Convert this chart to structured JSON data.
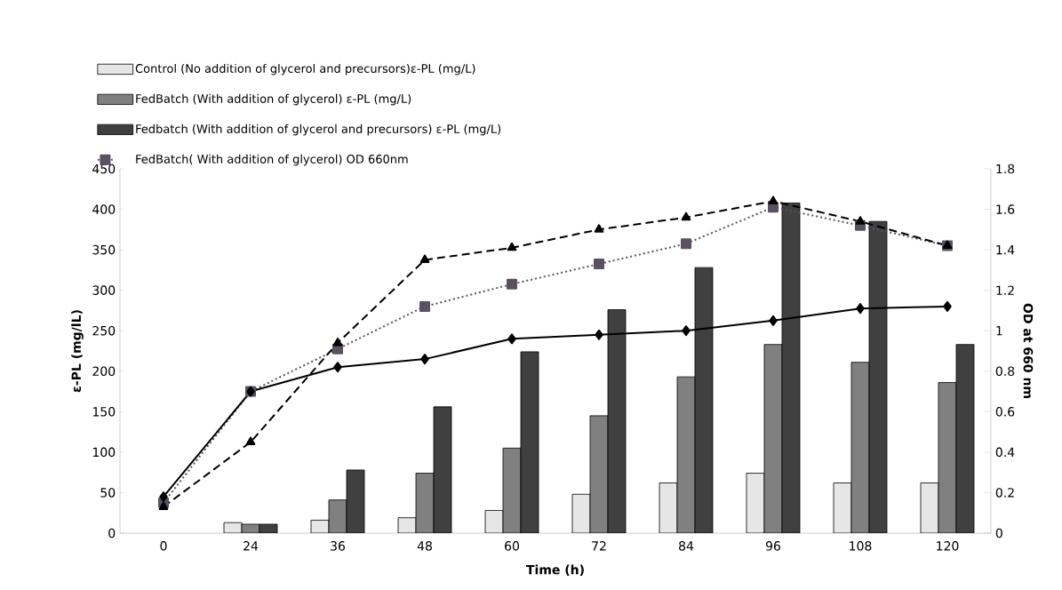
{
  "chart_data": {
    "type": "bar",
    "xlabel": "Time  (h)",
    "ylabel": "ε-PL (mg/lL)",
    "y2label": "OD at 660 nm",
    "categories": [
      "0",
      "24",
      "36",
      "48",
      "60",
      "72",
      "84",
      "96",
      "108",
      "120"
    ],
    "series": [
      {
        "name": "Control  (No addition of glycerol and precursors)ε-PL (mg/L)",
        "color": "#e6e6e6",
        "values": [
          null,
          13,
          16,
          19,
          28,
          48,
          62,
          74,
          62,
          62
        ]
      },
      {
        "name": "FedBatch (With addition of glycerol) ε-PL (mg/L)",
        "color": "#808080",
        "values": [
          null,
          11,
          41,
          74,
          105,
          145,
          193,
          233,
          211,
          186
        ]
      },
      {
        "name": "Fedbatch (With addition of glycerol and precursors) ε-PL (mg/L)",
        "color": "#404040",
        "values": [
          null,
          11,
          78,
          156,
          224,
          276,
          328,
          408,
          385,
          233
        ]
      },
      {
        "name": "FedBatch( With addition of glycerol) OD 660nm",
        "type": "line",
        "axis": "y2",
        "color": "#5a5262",
        "marker": "square",
        "line_style": "dotted",
        "values": [
          0.15,
          0.7,
          0.91,
          1.12,
          1.23,
          1.33,
          1.43,
          1.61,
          1.52,
          1.42
        ]
      },
      {
        "type": "line",
        "axis": "y2",
        "color": "#000000",
        "marker": "triangle",
        "line_style": "dashed",
        "values": [
          0.13,
          0.45,
          0.94,
          1.35,
          1.41,
          1.5,
          1.56,
          1.64,
          1.54,
          1.42
        ]
      },
      {
        "type": "line",
        "axis": "y2",
        "color": "#000000",
        "marker": "diamond",
        "line_style": "solid",
        "values": [
          0.18,
          0.7,
          0.82,
          0.86,
          0.96,
          0.98,
          1.0,
          1.05,
          1.11,
          1.12
        ]
      }
    ],
    "ylim": [
      0,
      450
    ],
    "yticks": [
      0,
      50,
      100,
      150,
      200,
      250,
      300,
      350,
      400,
      450
    ],
    "y2lim": [
      0,
      1.8
    ],
    "y2ticks": [
      0,
      0.2,
      0.4,
      0.6,
      0.8,
      1,
      1.2,
      1.4,
      1.6,
      1.8
    ],
    "legend": "top",
    "grid": false
  }
}
